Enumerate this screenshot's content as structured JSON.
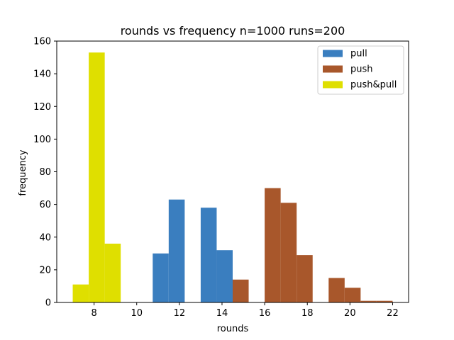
{
  "chart_data": {
    "type": "bar",
    "title": "rounds vs frequency n=1000 runs=200",
    "xlabel": "rounds",
    "ylabel": "frequency",
    "xlim": [
      6.25,
      22.75
    ],
    "ylim": [
      0,
      160
    ],
    "xticks": [
      8,
      10,
      12,
      14,
      16,
      18,
      20,
      22
    ],
    "yticks": [
      0,
      20,
      40,
      60,
      80,
      100,
      120,
      140,
      160
    ],
    "grid": false,
    "legend_position": "top-right",
    "series": [
      {
        "name": "pull",
        "color": "#3a7ebf",
        "bins": [
          {
            "x0": 10.75,
            "x1": 11.5,
            "value": 30
          },
          {
            "x0": 11.5,
            "x1": 12.25,
            "value": 63
          },
          {
            "x0": 13.0,
            "x1": 13.75,
            "value": 58
          },
          {
            "x0": 13.75,
            "x1": 14.5,
            "value": 32
          }
        ]
      },
      {
        "name": "push",
        "color": "#a8572b",
        "bins": [
          {
            "x0": 14.5,
            "x1": 15.25,
            "value": 14
          },
          {
            "x0": 16.0,
            "x1": 16.75,
            "value": 70
          },
          {
            "x0": 16.75,
            "x1": 17.5,
            "value": 61
          },
          {
            "x0": 17.5,
            "x1": 18.25,
            "value": 29
          },
          {
            "x0": 19.0,
            "x1": 19.75,
            "value": 15
          },
          {
            "x0": 19.75,
            "x1": 20.5,
            "value": 9
          },
          {
            "x0": 20.5,
            "x1": 21.25,
            "value": 1
          },
          {
            "x0": 21.25,
            "x1": 22.0,
            "value": 1
          }
        ]
      },
      {
        "name": "push&pull",
        "color": "#dfdf00",
        "bins": [
          {
            "x0": 7.0,
            "x1": 7.75,
            "value": 11
          },
          {
            "x0": 7.75,
            "x1": 8.5,
            "value": 153
          },
          {
            "x0": 8.5,
            "x1": 9.25,
            "value": 36
          }
        ]
      }
    ]
  }
}
